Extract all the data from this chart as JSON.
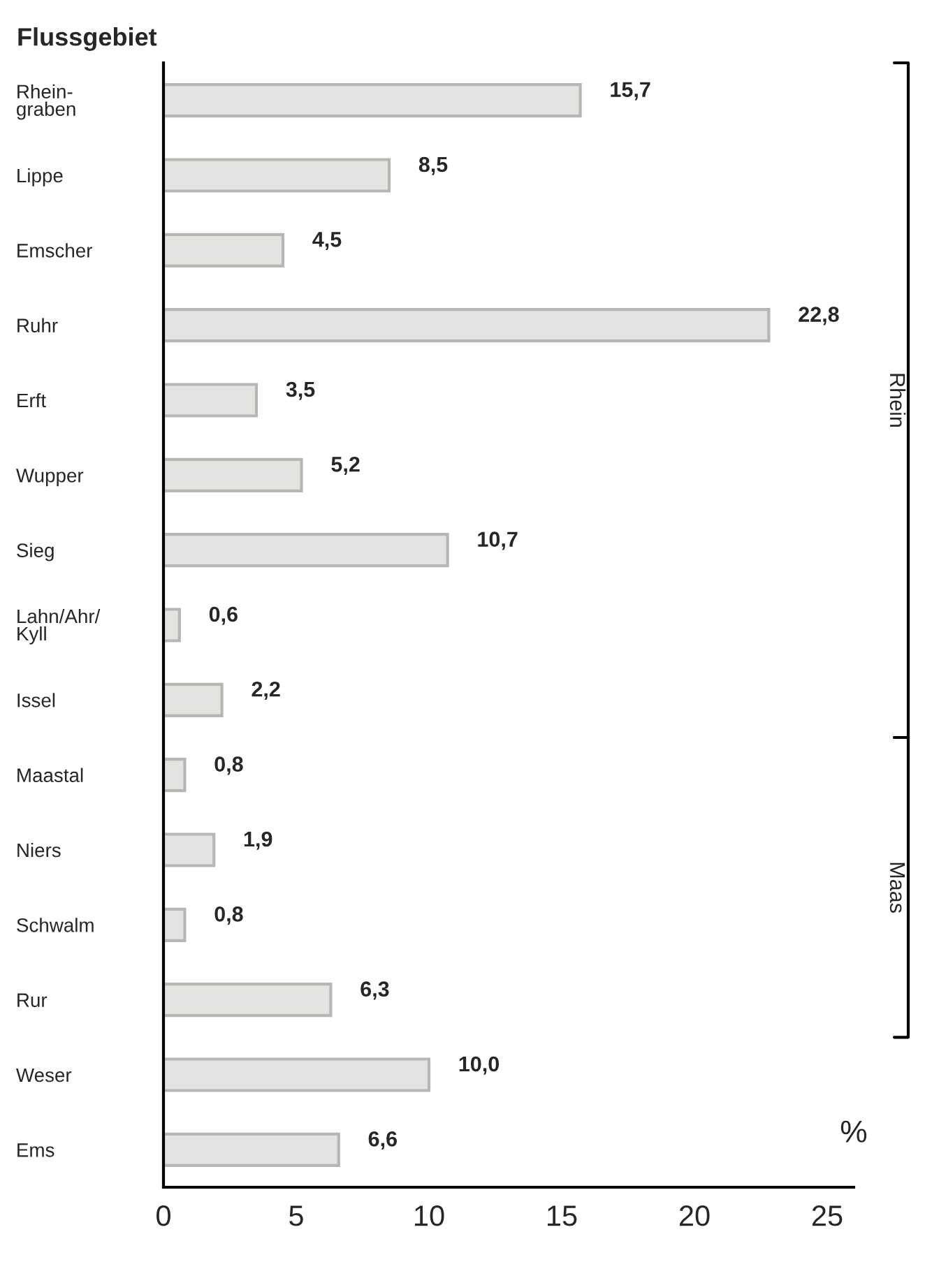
{
  "chart_data": {
    "type": "bar",
    "orientation": "horizontal",
    "title": "Flussgebiet",
    "xlabel": "%",
    "categories": [
      "Rhein-\ngraben",
      "Lippe",
      "Emscher",
      "Ruhr",
      "Erft",
      "Wupper",
      "Sieg",
      "Lahn/Ahr/\nKyll",
      "Issel",
      "Maastal",
      "Niers",
      "Schwalm",
      "Rur",
      "Weser",
      "Ems"
    ],
    "values": [
      15.7,
      8.5,
      4.5,
      22.8,
      3.5,
      5.2,
      10.7,
      0.6,
      2.2,
      0.8,
      1.9,
      0.8,
      6.3,
      10.0,
      6.6
    ],
    "value_labels": [
      "15,7",
      "8,5",
      "4,5",
      "22,8",
      "3,5",
      "5,2",
      "10,7",
      "0,6",
      "2,2",
      "0,8",
      "1,9",
      "0,8",
      "6,3",
      "10,0",
      "6,6"
    ],
    "color": "#e3e4e1",
    "xlim": [
      0,
      26
    ],
    "xticks": [
      0,
      5,
      10,
      15,
      20,
      25
    ],
    "grid": false,
    "annotations": [
      "Rhein",
      "Maas"
    ]
  }
}
